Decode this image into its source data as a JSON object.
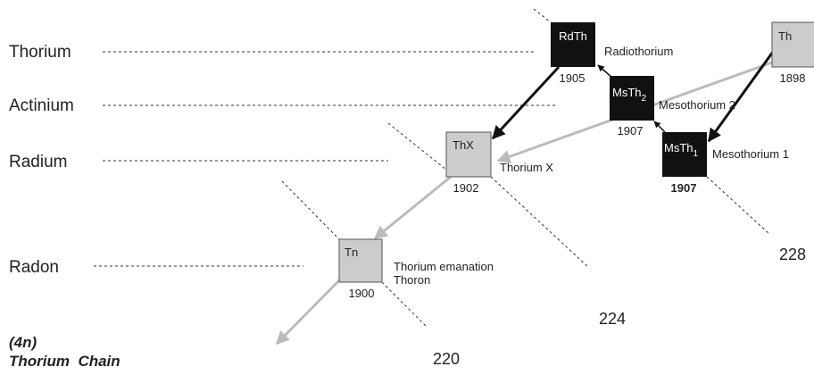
{
  "rows": [
    "Thorium",
    "Actinium",
    "Radium",
    "Radon"
  ],
  "nodes": [
    {
      "symbol": "RdTh",
      "year": "1905",
      "name": "Radiothorium"
    },
    {
      "symbol": "Th",
      "year": "1898"
    },
    {
      "symbol": "MsTh",
      "sub": "2",
      "year": "1907",
      "name": "Mesothorium 2"
    },
    {
      "symbol": "MsTh",
      "sub": "1",
      "year": "1907",
      "name": "Mesothorium 1"
    },
    {
      "symbol": "ThX",
      "year": "1902",
      "name": "Thorium X"
    },
    {
      "symbol": "Tn",
      "year": "1900",
      "name": "Thorium emanation",
      "name2": "Thoron"
    }
  ],
  "masses": [
    "228",
    "224",
    "220"
  ],
  "chain": {
    "label": "(4n)",
    "title": "Thorium  Chain"
  }
}
